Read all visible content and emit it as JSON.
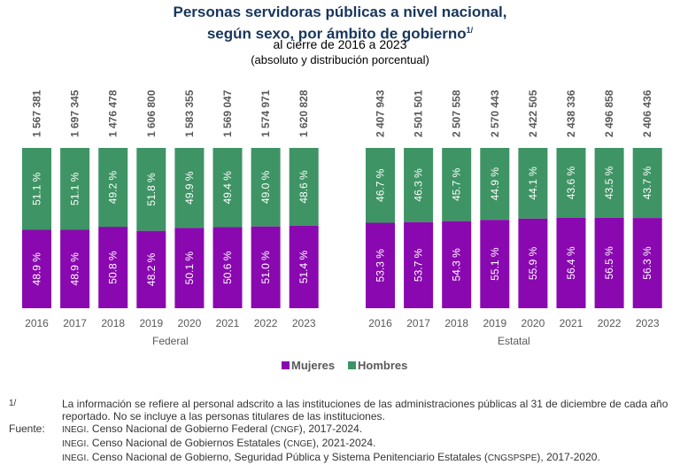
{
  "title_line1": "Personas servidoras públicas a nivel nacional,",
  "title_line2": "según sexo, por ámbito de gobierno",
  "title_sup": "1/",
  "subtitle1": "al cierre de 2016 a 2023",
  "subtitle2": "(absoluto y distribución porcentual)",
  "chart_data": {
    "type": "bar",
    "stacked": true,
    "percent": true,
    "categories": [
      "2016",
      "2017",
      "2018",
      "2019",
      "2020",
      "2021",
      "2022",
      "2023"
    ],
    "groups": [
      {
        "label": "Federal",
        "totals": [
          "1 567 381",
          "1 697 345",
          "1 476 478",
          "1 606 800",
          "1 583 355",
          "1 569 047",
          "1 574 971",
          "1 620 828"
        ],
        "mujeres": [
          48.9,
          48.9,
          50.8,
          48.2,
          50.1,
          50.6,
          51.0,
          51.4
        ],
        "hombres": [
          51.1,
          51.1,
          49.2,
          51.8,
          49.9,
          49.4,
          49.0,
          48.6
        ]
      },
      {
        "label": "Estatal",
        "totals": [
          "2 407 943",
          "2 501 501",
          "2 507 558",
          "2 570 443",
          "2 422 505",
          "2 438 336",
          "2 496 858",
          "2 406 436"
        ],
        "mujeres": [
          53.3,
          53.7,
          54.3,
          55.1,
          55.9,
          56.4,
          56.5,
          56.3
        ],
        "hombres": [
          46.7,
          46.3,
          45.7,
          44.9,
          44.1,
          43.6,
          43.5,
          43.7
        ]
      }
    ],
    "legend": [
      {
        "name": "Mujeres",
        "color": "#8a08b0"
      },
      {
        "name": "Hombres",
        "color": "#3e9464"
      }
    ],
    "legend_position": "bottom",
    "grid": false
  },
  "notes": {
    "note_mark": "1/",
    "note_text": "La información se refiere al personal adscrito a las instituciones de las administraciones públicas al 31 de diciembre de cada año reportado. No se incluye a las personas titulares de las instituciones.",
    "source_label": "Fuente:",
    "sources": [
      {
        "org": "INEGI",
        "text": ". Censo Nacional de Gobierno Federal (",
        "abbr": "CNGF",
        "end": "), 2017-2024."
      },
      {
        "org": "INEGI",
        "text": ". Censo Nacional de Gobiernos Estatales (",
        "abbr": "CNGE",
        "end": "), 2021-2024."
      },
      {
        "org": "INEGI",
        "text": ". Censo Nacional de Gobierno, Seguridad Pública y Sistema Penitenciario Estatales (",
        "abbr": "CNGSPSPE",
        "end": "), 2017-2020."
      }
    ]
  }
}
